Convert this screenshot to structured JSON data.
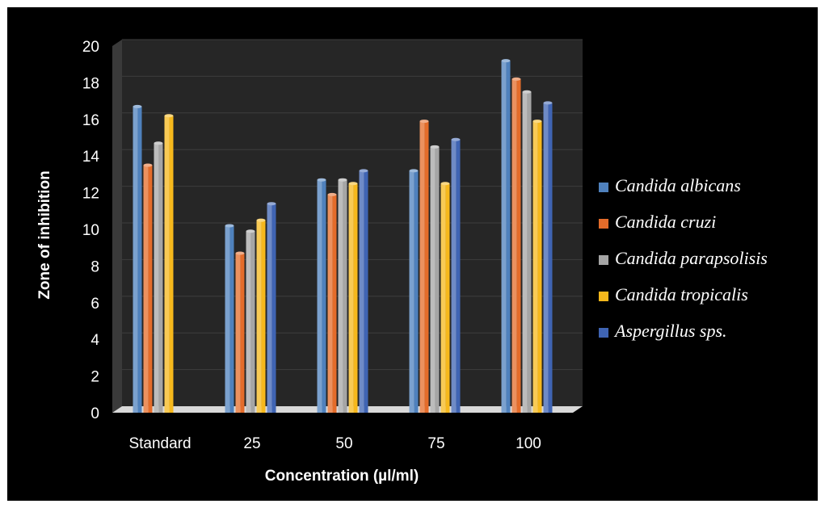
{
  "chart_data": {
    "type": "bar",
    "categories": [
      "Standard",
      "25",
      "50",
      "75",
      "100"
    ],
    "series": [
      {
        "name": "Candida albicans",
        "color": "#4f81bd",
        "values": [
          16.7,
          10.2,
          12.7,
          13.2,
          19.2
        ]
      },
      {
        "name": "Candida cruzi",
        "color": "#e46c2a",
        "values": [
          13.5,
          8.7,
          11.9,
          15.9,
          18.2
        ]
      },
      {
        "name": "Candida parapsolisis",
        "color": "#a5a5a5",
        "values": [
          14.7,
          9.9,
          12.7,
          14.5,
          17.5
        ]
      },
      {
        "name": "Candida tropicalis",
        "color": "#f6b81c",
        "values": [
          16.2,
          10.5,
          12.5,
          12.5,
          15.9
        ]
      },
      {
        "name": "Aspergillus sps.",
        "color": "#3f64b3",
        "values": [
          0,
          11.4,
          13.2,
          14.9,
          16.9
        ]
      }
    ],
    "xlabel": "Concentration (µl/ml)",
    "ylabel": "Zone of inhibition",
    "ylim": [
      0,
      20
    ],
    "yticks": [
      "0",
      "2",
      "4",
      "6",
      "8",
      "10",
      "12",
      "14",
      "16",
      "18",
      "20"
    ],
    "legend_position": "right",
    "style": "3d-columns",
    "background": "#000000",
    "wall_color": "#262626"
  }
}
